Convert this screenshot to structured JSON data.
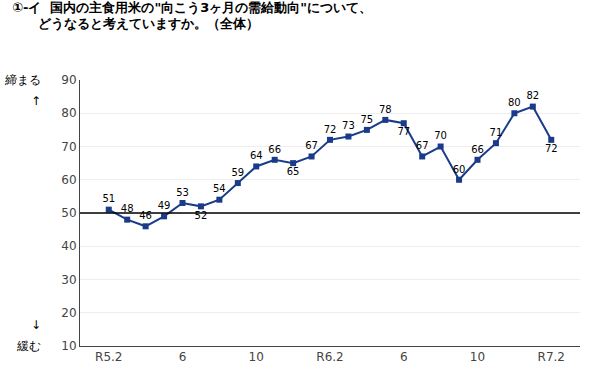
{
  "chart_data": {
    "type": "line",
    "title": "①-イ  国内の主食用米の\"向こう3ヶ月の需給動向\"について、",
    "subtitle": "　　どうなると考えていますか。（全体）",
    "annotations": [
      "締まる",
      "↑",
      "↓",
      "緩む"
    ],
    "categories": [
      "R5.2",
      null,
      null,
      null,
      "6",
      null,
      null,
      null,
      "10",
      null,
      null,
      null,
      "R6.2",
      null,
      null,
      null,
      "6",
      null,
      null,
      null,
      "10",
      null,
      null,
      null,
      "R7.2"
    ],
    "values": [
      51,
      48,
      46,
      49,
      53,
      52,
      54,
      59,
      64,
      66,
      65,
      67,
      72,
      73,
      75,
      78,
      77,
      67,
      70,
      60,
      66,
      71,
      80,
      82,
      72
    ],
    "color": "#1a3a8a",
    "marker": "square",
    "data_labels": true,
    "reference_line": {
      "y": 50,
      "color": "#000000"
    },
    "ylim": [
      10,
      90
    ],
    "yticks": [
      10,
      20,
      30,
      40,
      50,
      60,
      70,
      80,
      90
    ],
    "grid": true
  }
}
